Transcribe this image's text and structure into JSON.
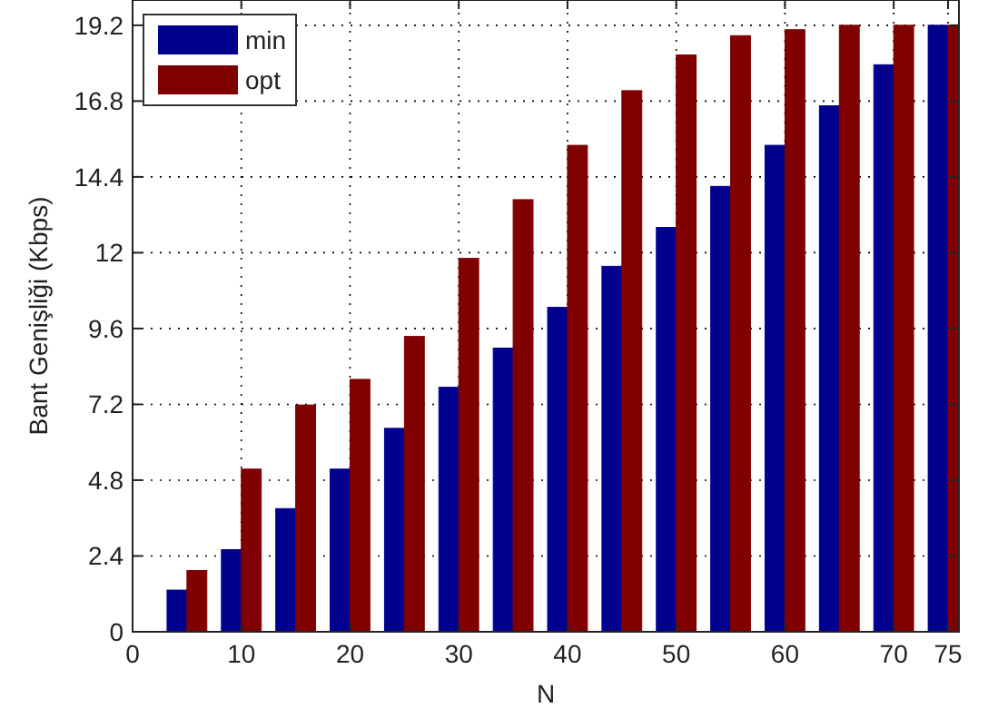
{
  "chart_data": {
    "type": "bar",
    "xlabel": "N",
    "ylabel": "Bant Genişliği (Kbps)",
    "x": [
      5,
      10,
      15,
      20,
      25,
      30,
      35,
      40,
      45,
      50,
      55,
      60,
      65,
      70,
      75
    ],
    "series": [
      {
        "name": "min",
        "color": "#00008f",
        "values": [
          1.32,
          2.6,
          3.9,
          5.15,
          6.44,
          7.74,
          8.98,
          10.27,
          11.57,
          12.8,
          14.1,
          15.4,
          16.65,
          17.95,
          19.2
        ]
      },
      {
        "name": "opt",
        "color": "#800000",
        "values": [
          1.94,
          5.15,
          7.18,
          7.99,
          9.35,
          11.82,
          13.68,
          15.4,
          17.13,
          18.26,
          18.87,
          19.06,
          19.2,
          19.2,
          19.2
        ]
      }
    ],
    "xlim": [
      0,
      76
    ],
    "xticks": [
      0,
      10,
      20,
      30,
      40,
      50,
      60,
      70,
      75
    ],
    "ylim": [
      0,
      20
    ],
    "yticks": [
      0,
      2.4,
      4.8,
      7.2,
      9.6,
      12,
      14.4,
      16.8,
      19.2
    ],
    "grid": true,
    "legend": "top left"
  }
}
